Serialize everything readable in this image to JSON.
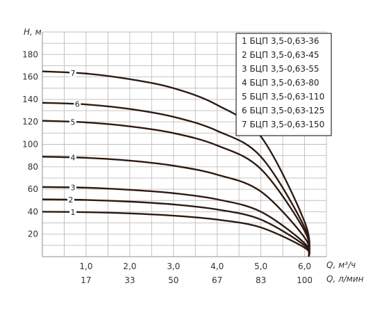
{
  "chart_data": {
    "type": "line",
    "xlabel": "Q, м³/ч",
    "xlabel_secondary": "Q, л/мин",
    "ylabel": "H, м",
    "x_ticks": [
      "1,0",
      "2,0",
      "3,0",
      "4,0",
      "5,0",
      "6,0"
    ],
    "x_ticks_secondary": [
      "17",
      "33",
      "50",
      "67",
      "83",
      "100"
    ],
    "y_ticks": [
      "20",
      "40",
      "60",
      "80",
      "100",
      "120",
      "140",
      "160",
      "180"
    ],
    "xlim": [
      0,
      6.5
    ],
    "ylim": [
      0,
      200
    ],
    "grid": true,
    "legend_position": "top-right",
    "legend": [
      "1 БЦП 3,5-0,63-36",
      "2 БЦП 3,5-0,63-45",
      "3 БЦП 3,5-0,63-55",
      "4 БЦП 3,5-0,63-80",
      "5 БЦП 3,5-0,63-110",
      "6 БЦП 3,5-0,63-125",
      "7 БЦП 3,5-0,63-150"
    ],
    "series": [
      {
        "name": "1",
        "x": [
          0,
          1,
          2,
          3,
          4,
          5,
          6,
          6.1
        ],
        "y": [
          40,
          39.6,
          38.5,
          36.5,
          33,
          26,
          8,
          0
        ]
      },
      {
        "name": "2",
        "x": [
          0,
          1,
          2,
          3,
          4,
          5,
          6,
          6.1
        ],
        "y": [
          51,
          50.5,
          49,
          46.5,
          42,
          33,
          10,
          0
        ]
      },
      {
        "name": "3",
        "x": [
          0,
          1,
          2,
          3,
          4,
          5,
          6,
          6.1
        ],
        "y": [
          62,
          61.4,
          59.5,
          56.5,
          51,
          40,
          12,
          0
        ]
      },
      {
        "name": "4",
        "x": [
          0,
          1,
          2,
          3,
          4,
          5,
          6,
          6.1
        ],
        "y": [
          89,
          88,
          85.5,
          81,
          73,
          58,
          17,
          0
        ]
      },
      {
        "name": "5",
        "x": [
          0,
          1,
          2,
          3,
          4,
          5,
          6,
          6.1
        ],
        "y": [
          121,
          119.5,
          116,
          110,
          99,
          78,
          23,
          0
        ]
      },
      {
        "name": "6",
        "x": [
          0,
          1,
          2,
          3,
          4,
          5,
          6,
          6.1
        ],
        "y": [
          137,
          135.5,
          131.5,
          124.5,
          112,
          89,
          26,
          0
        ]
      },
      {
        "name": "7",
        "x": [
          0,
          1,
          2,
          3,
          4,
          5,
          6,
          6.1
        ],
        "y": [
          165,
          163,
          158,
          150,
          135,
          107,
          31,
          0
        ]
      }
    ],
    "curve_label_x": [
      0.7,
      0.65,
      0.7,
      0.7,
      0.7,
      0.8,
      0.7
    ]
  }
}
